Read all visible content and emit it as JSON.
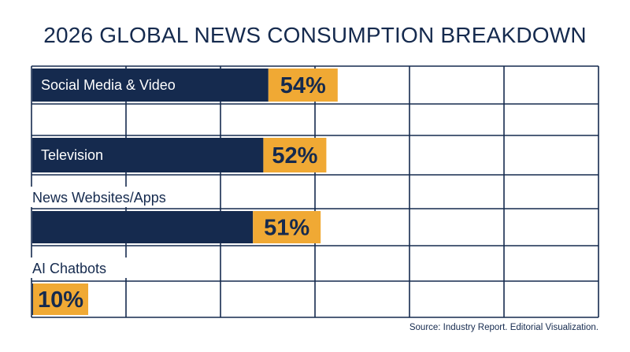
{
  "colors": {
    "bar": "#152a4e",
    "badge": "#f0a934",
    "grid": "#152a4e",
    "text": "#152a4e",
    "background": "#ffffff"
  },
  "chart_data": {
    "type": "bar",
    "orientation": "horizontal",
    "title": "2026 GLOBAL NEWS CONSUMPTION BREAKDOWN",
    "categories": [
      "Social Media & Video",
      "Television",
      "News Websites/Apps",
      "AI Chatbots"
    ],
    "values": [
      54,
      52,
      51,
      10
    ],
    "value_labels": [
      "54%",
      "52%",
      "51%",
      "10%"
    ],
    "label_position": [
      "inside",
      "inside",
      "above",
      "above"
    ],
    "xlim": [
      0,
      100
    ],
    "grid": true,
    "source": "Source: Industry Report. Editorial Visualization."
  }
}
